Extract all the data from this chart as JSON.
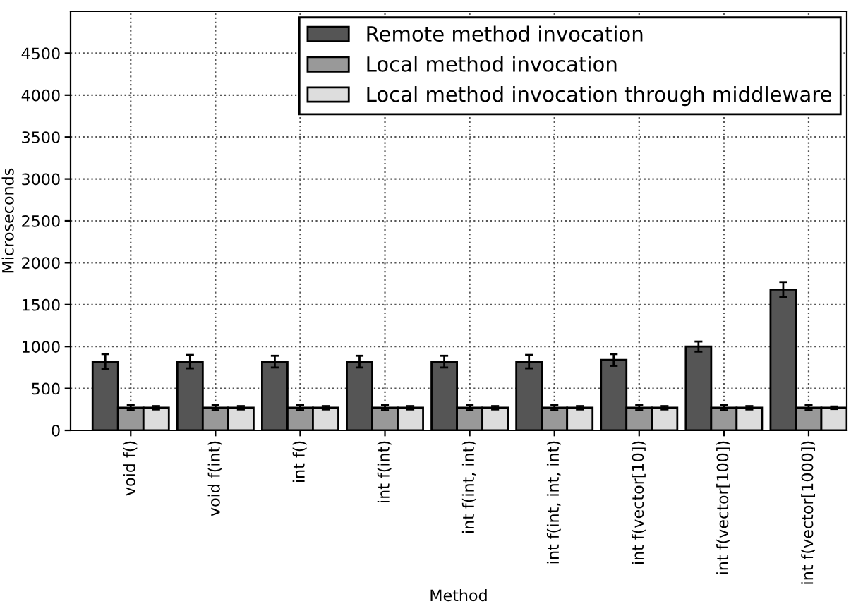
{
  "chart_data": {
    "type": "bar",
    "xlabel": "Method",
    "ylabel": "Microseconds",
    "categories": [
      "void f()",
      "void f(int)",
      "int f()",
      "int f(int)",
      "int f(int, int)",
      "int f(int, int, int)",
      "int f(vector[10])",
      "int f(vector[100])",
      "int f(vector[1000])"
    ],
    "series": [
      {
        "name": "Remote method invocation",
        "color": "#555555",
        "values": [
          820,
          820,
          820,
          820,
          820,
          820,
          840,
          1000,
          1680
        ],
        "errors": [
          90,
          80,
          70,
          70,
          70,
          80,
          70,
          60,
          90
        ]
      },
      {
        "name": "Local method invocation",
        "color": "#999999",
        "values": [
          270,
          270,
          270,
          270,
          270,
          270,
          270,
          270,
          270
        ],
        "errors": [
          30,
          30,
          30,
          30,
          30,
          30,
          30,
          30,
          30
        ]
      },
      {
        "name": "Local method invocation through middleware",
        "color": "#dddddd",
        "values": [
          270,
          270,
          270,
          270,
          270,
          270,
          270,
          270,
          270
        ],
        "errors": [
          20,
          20,
          20,
          20,
          20,
          20,
          20,
          20,
          15
        ]
      }
    ],
    "ylim": [
      0,
      5000
    ],
    "yticks": [
      0,
      500,
      1000,
      1500,
      2000,
      2500,
      3000,
      3500,
      4000,
      4500
    ],
    "grid": true,
    "legend": "top right"
  }
}
